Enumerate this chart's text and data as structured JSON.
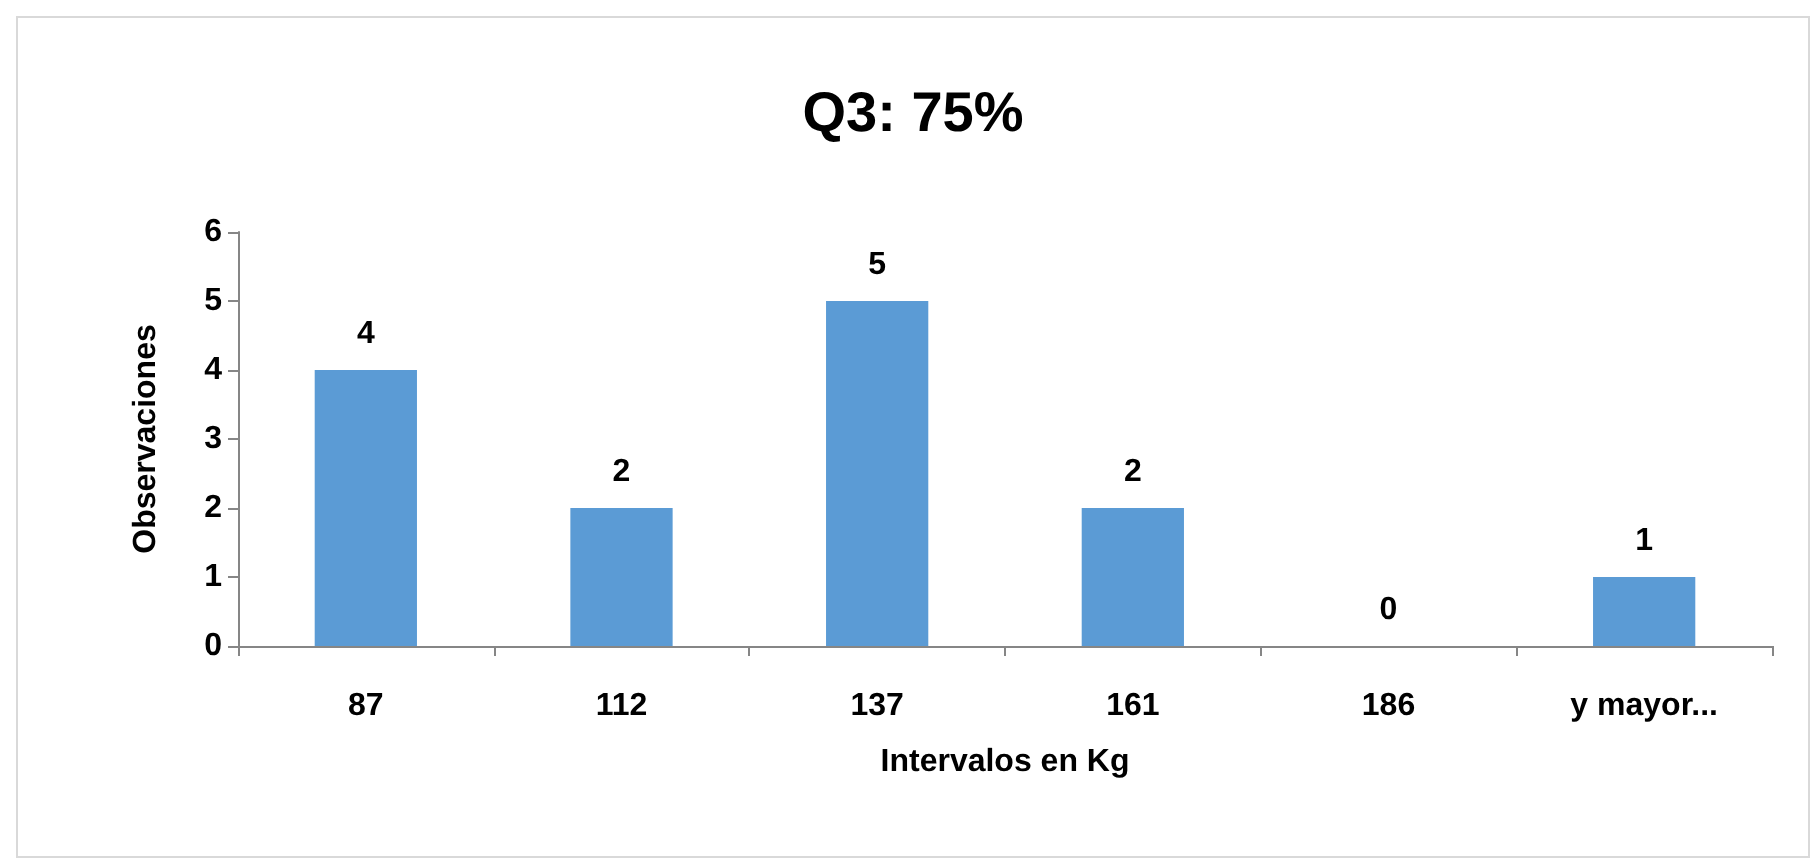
{
  "chart_data": {
    "type": "bar",
    "title": "Q3: 75%",
    "xlabel": "Intervalos en Kg",
    "ylabel": "Observaciones",
    "categories": [
      "87",
      "112",
      "137",
      "161",
      "186",
      "y mayor..."
    ],
    "values": [
      4,
      2,
      5,
      2,
      0,
      1
    ],
    "color": "#5b9bd5",
    "ylim": [
      0,
      6
    ],
    "yticks": [
      0,
      1,
      2,
      3,
      4,
      5,
      6
    ],
    "grid": false,
    "data_labels": true
  }
}
